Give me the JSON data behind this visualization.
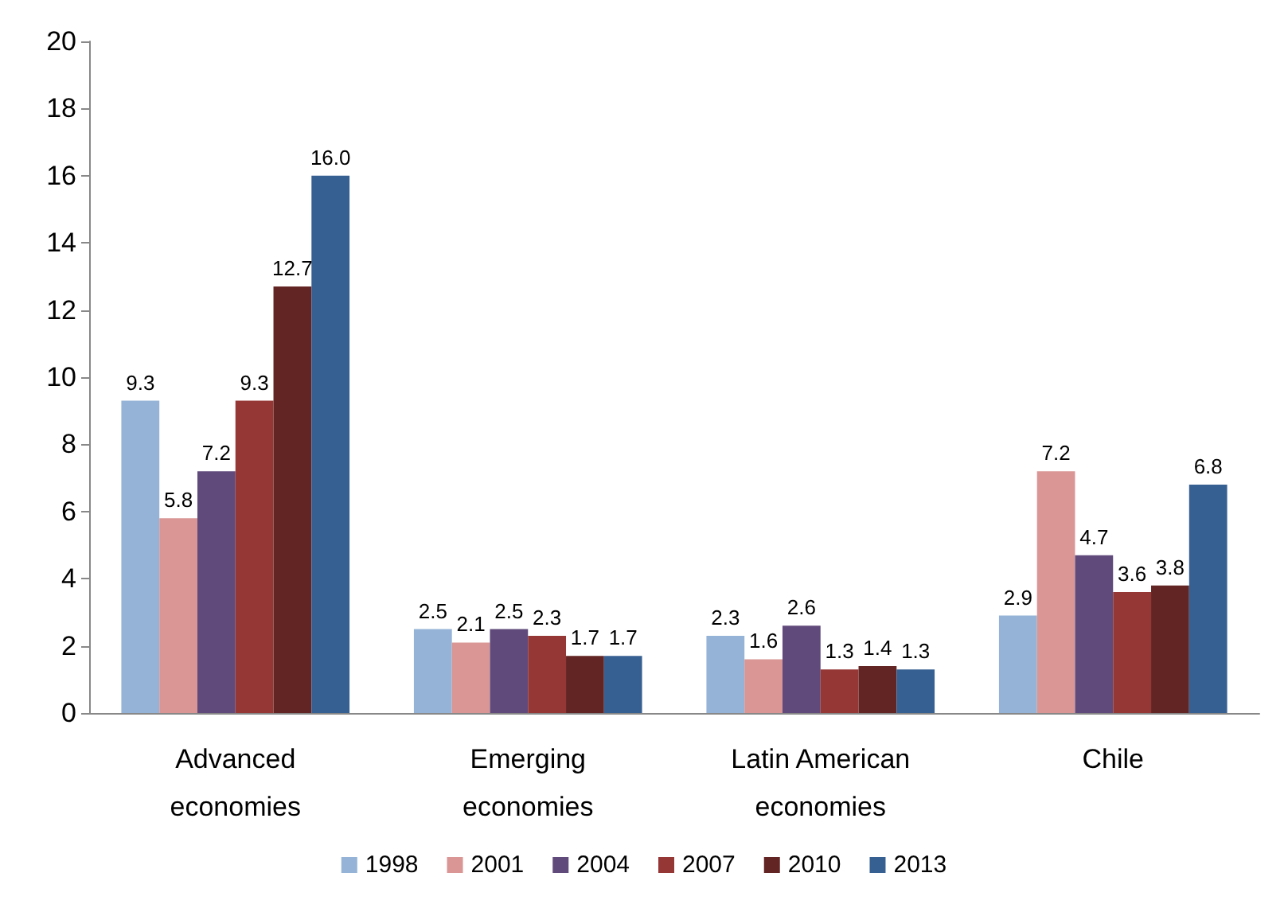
{
  "chart_data": {
    "type": "bar",
    "categories": [
      "Advanced\neconomies",
      "Emerging\neconomies",
      "Latin American\neconomies",
      "Chile"
    ],
    "series": [
      {
        "name": "1998",
        "color": "#95b3d7",
        "values": [
          9.3,
          2.5,
          2.3,
          2.9
        ],
        "value_labels": [
          "9.3",
          "2.5",
          "2.3",
          "2.9"
        ]
      },
      {
        "name": "2001",
        "color": "#d99694",
        "values": [
          5.8,
          2.1,
          1.6,
          7.2
        ],
        "value_labels": [
          "5.8",
          "2.1",
          "1.6",
          "7.2"
        ]
      },
      {
        "name": "2004",
        "color": "#604a7b",
        "values": [
          7.2,
          2.5,
          2.6,
          4.7
        ],
        "value_labels": [
          "7.2",
          "2.5",
          "2.6",
          "4.7"
        ]
      },
      {
        "name": "2007",
        "color": "#953735",
        "values": [
          9.3,
          2.3,
          1.3,
          3.6
        ],
        "value_labels": [
          "9.3",
          "2.3",
          "1.3",
          "3.6"
        ]
      },
      {
        "name": "2010",
        "color": "#632523",
        "values": [
          12.7,
          1.7,
          1.4,
          3.8
        ],
        "value_labels": [
          "12.7",
          "1.7",
          "1.4",
          "3.8"
        ]
      },
      {
        "name": "2013",
        "color": "#376092",
        "values": [
          16,
          1.7,
          1.3,
          6.8
        ],
        "value_labels": [
          "16.0",
          "1.7",
          "1.3",
          "6.8"
        ]
      }
    ],
    "ylim": [
      0,
      20
    ],
    "yticks": [
      0,
      2,
      4,
      6,
      8,
      10,
      12,
      14,
      16,
      18,
      20
    ],
    "grid": false,
    "legend": "bottom"
  }
}
